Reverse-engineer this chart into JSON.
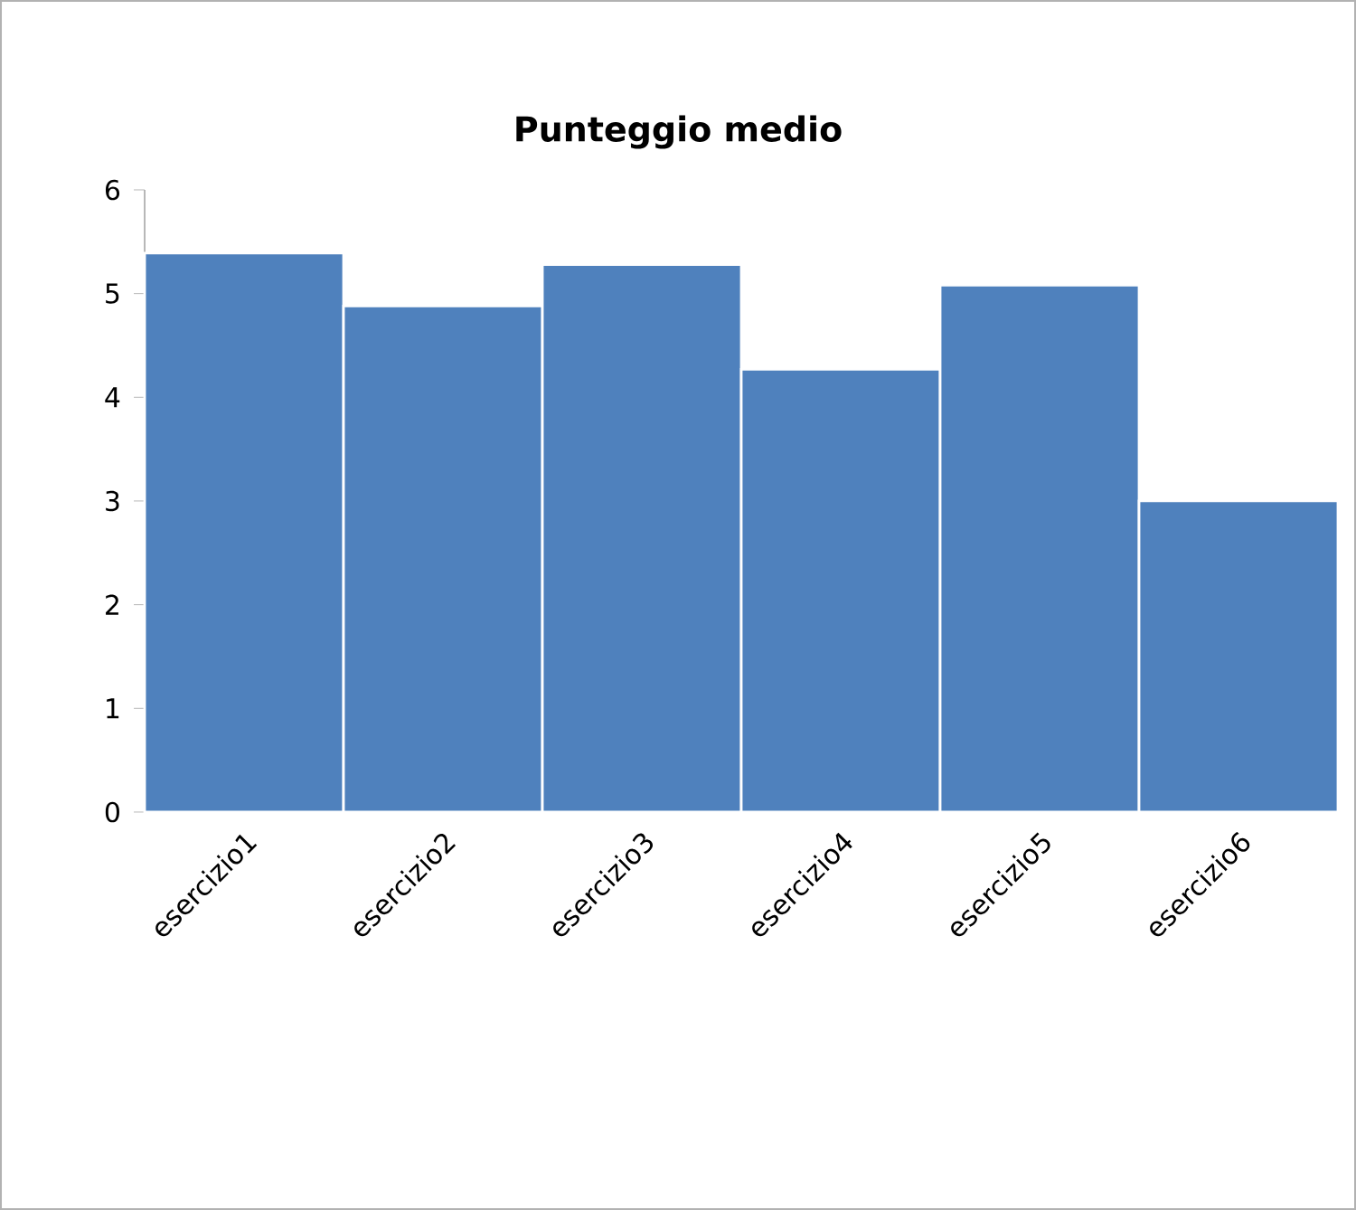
{
  "chart_data": {
    "type": "bar",
    "title": "Punteggio medio",
    "categories": [
      "esercizio1",
      "esercizio2",
      "esercizio3",
      "esercizio4",
      "esercizio5",
      "esercizio6"
    ],
    "values": [
      5.39,
      4.88,
      5.28,
      4.27,
      5.08,
      3.0
    ],
    "color": "#4f81bd",
    "ylim": [
      0,
      6
    ],
    "yticks": [
      0,
      1,
      2,
      3,
      4,
      5,
      6
    ],
    "grid": false
  }
}
